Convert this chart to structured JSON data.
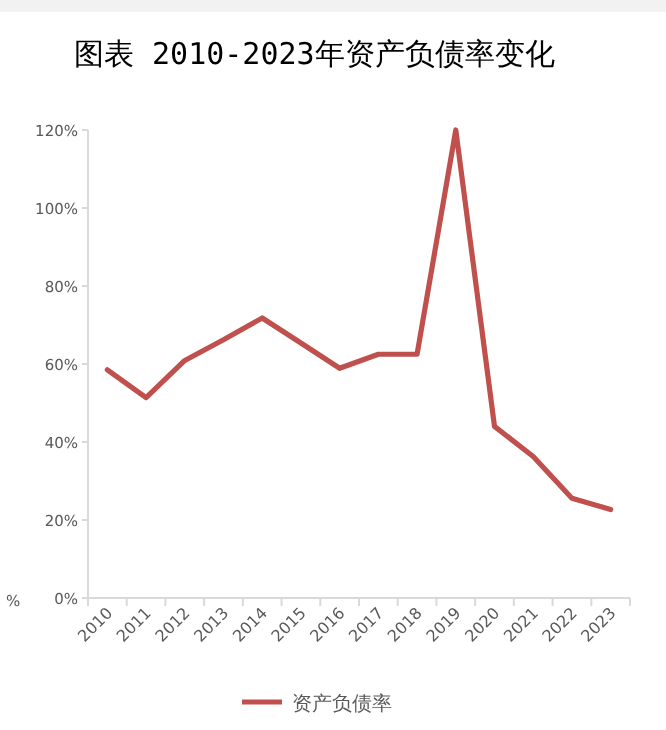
{
  "chart_data": {
    "type": "line",
    "title": "图表 2010-2023年资产负债率变化",
    "ylabel": "%",
    "categories": [
      "2010",
      "2011",
      "2012",
      "2013",
      "2014",
      "2015",
      "2016",
      "2017",
      "2018",
      "2019",
      "2020",
      "2021",
      "2022",
      "2023"
    ],
    "series": [
      {
        "name": "资产负债率",
        "color": "#c0504d",
        "values": [
          58.5,
          51.4,
          60.9,
          66.2,
          71.8,
          65.4,
          58.9,
          62.5,
          62.5,
          120,
          44,
          36.3,
          25.6,
          22.7
        ]
      }
    ],
    "ylim": [
      0,
      120
    ],
    "yticks": [
      {
        "value": 0,
        "label": "0%"
      },
      {
        "value": 20,
        "label": "20%"
      },
      {
        "value": 40,
        "label": "40%"
      },
      {
        "value": 60,
        "label": "60%"
      },
      {
        "value": 80,
        "label": "80%"
      },
      {
        "value": 100,
        "label": "100%"
      },
      {
        "value": 120,
        "label": "120%"
      }
    ],
    "grid": false,
    "legend": "bottom",
    "marker": "none",
    "line_style": "solid"
  }
}
